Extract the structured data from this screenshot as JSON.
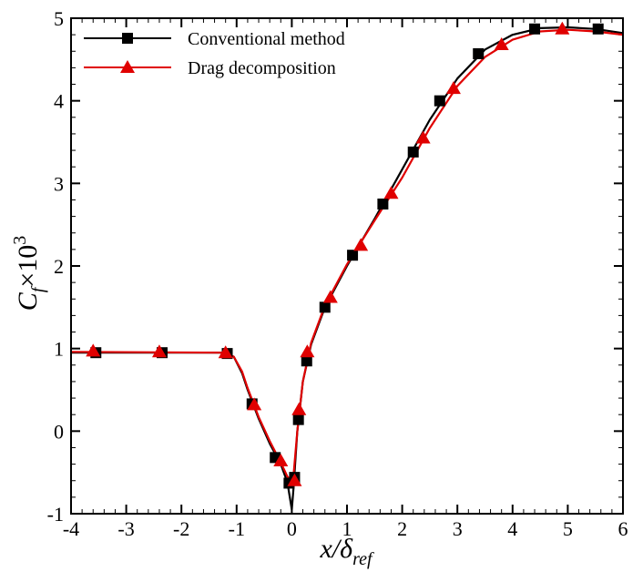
{
  "chart_data": {
    "type": "line",
    "title": "",
    "xlabel": {
      "main": "x/δ",
      "sub": "ref"
    },
    "ylabel": {
      "main": "C",
      "sub": "f",
      "times": "×10",
      "sup": "3"
    },
    "xlim": [
      -4,
      6
    ],
    "ylim": [
      -1,
      5
    ],
    "xticks": [
      -4,
      -3,
      -2,
      -1,
      0,
      1,
      2,
      3,
      4,
      5,
      6
    ],
    "yticks": [
      -1,
      0,
      1,
      2,
      3,
      4,
      5
    ],
    "grid": false,
    "legend_position": "top-left",
    "series": [
      {
        "name": "Conventional method",
        "color": "#000000",
        "marker": "square",
        "curve": [
          [
            -4,
            0.95
          ],
          [
            -1.2,
            0.95
          ],
          [
            -1.05,
            0.9
          ],
          [
            -0.9,
            0.7
          ],
          [
            -0.8,
            0.5
          ],
          [
            -0.6,
            0.15
          ],
          [
            -0.4,
            -0.15
          ],
          [
            -0.2,
            -0.4
          ],
          [
            -0.08,
            -0.62
          ],
          [
            0,
            -0.95
          ],
          [
            0.03,
            -0.7
          ],
          [
            0.1,
            0
          ],
          [
            0.2,
            0.6
          ],
          [
            0.35,
            1.05
          ],
          [
            0.6,
            1.5
          ],
          [
            1,
            2.0
          ],
          [
            1.5,
            2.57
          ],
          [
            2,
            3.17
          ],
          [
            2.5,
            3.77
          ],
          [
            3,
            4.27
          ],
          [
            3.5,
            4.62
          ],
          [
            4,
            4.8
          ],
          [
            4.5,
            4.88
          ],
          [
            5,
            4.89
          ],
          [
            5.5,
            4.87
          ],
          [
            6,
            4.82
          ]
        ],
        "markers": [
          [
            -3.55,
            0.95
          ],
          [
            -2.35,
            0.95
          ],
          [
            -1.17,
            0.94
          ],
          [
            -0.72,
            0.33
          ],
          [
            -0.3,
            -0.32
          ],
          [
            -0.05,
            -0.63
          ],
          [
            0.05,
            -0.56
          ],
          [
            0.12,
            0.14
          ],
          [
            0.27,
            0.85
          ],
          [
            0.6,
            1.5
          ],
          [
            1.1,
            2.13
          ],
          [
            1.65,
            2.75
          ],
          [
            2.2,
            3.38
          ],
          [
            2.68,
            4.0
          ],
          [
            3.38,
            4.57
          ],
          [
            4.4,
            4.87
          ],
          [
            5.55,
            4.87
          ]
        ]
      },
      {
        "name": "Drag decomposition",
        "color": "#e00000",
        "marker": "triangle",
        "curve": [
          [
            -4,
            0.96
          ],
          [
            -1.2,
            0.95
          ],
          [
            -1.05,
            0.9
          ],
          [
            -0.9,
            0.72
          ],
          [
            -0.8,
            0.52
          ],
          [
            -0.6,
            0.17
          ],
          [
            -0.4,
            -0.12
          ],
          [
            -0.2,
            -0.38
          ],
          [
            -0.08,
            -0.55
          ],
          [
            0.02,
            -0.62
          ],
          [
            0.1,
            0
          ],
          [
            0.2,
            0.6
          ],
          [
            0.35,
            1.07
          ],
          [
            0.6,
            1.52
          ],
          [
            1,
            2.02
          ],
          [
            1.5,
            2.55
          ],
          [
            2,
            3.07
          ],
          [
            2.5,
            3.67
          ],
          [
            3,
            4.18
          ],
          [
            3.5,
            4.53
          ],
          [
            4,
            4.74
          ],
          [
            4.5,
            4.84
          ],
          [
            5,
            4.86
          ],
          [
            5.5,
            4.84
          ],
          [
            6,
            4.8
          ]
        ],
        "markers": [
          [
            -3.6,
            0.97
          ],
          [
            -2.4,
            0.96
          ],
          [
            -1.2,
            0.95
          ],
          [
            -0.68,
            0.32
          ],
          [
            -0.2,
            -0.36
          ],
          [
            0.05,
            -0.6
          ],
          [
            0.13,
            0.26
          ],
          [
            0.28,
            0.96
          ],
          [
            0.7,
            1.62
          ],
          [
            1.25,
            2.25
          ],
          [
            1.8,
            2.88
          ],
          [
            2.38,
            3.55
          ],
          [
            2.93,
            4.15
          ],
          [
            3.8,
            4.68
          ],
          [
            4.9,
            4.87
          ]
        ]
      }
    ]
  }
}
